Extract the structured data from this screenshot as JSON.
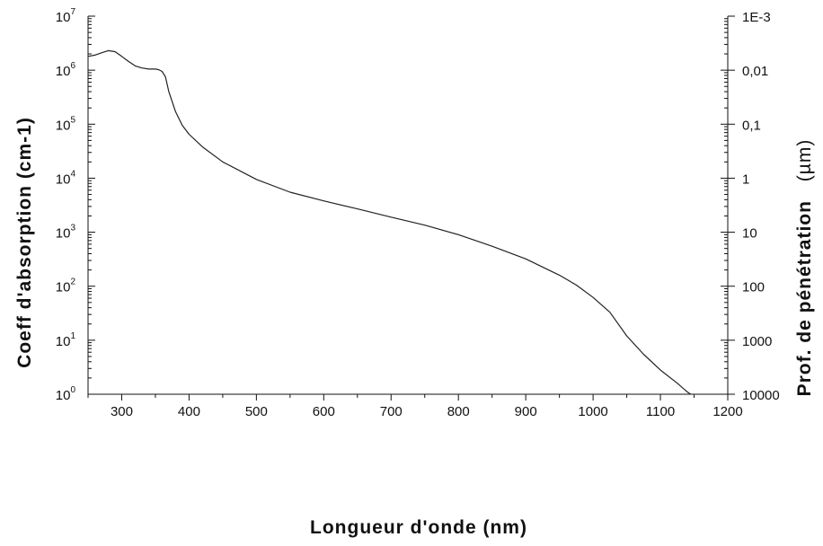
{
  "chart_data": {
    "type": "line",
    "title": "",
    "xlabel": "Longueur d'onde (nm)",
    "ylabel": "Coeff d'absorption (cm-1)",
    "y2label": "Prof. de pénétration  (µm)",
    "y2label_parts": {
      "main": "Prof. de pénétration",
      "unit": "(µm)"
    },
    "xlim": [
      250,
      1200
    ],
    "ylim": [
      1,
      10000000
    ],
    "yscale": "log",
    "y2scale": "log",
    "y2_inverse_of_y": true,
    "grid": false,
    "legend": "none",
    "x_ticks": [
      300,
      400,
      500,
      600,
      700,
      800,
      900,
      1000,
      1100,
      1200
    ],
    "x_tick_labels": [
      "300",
      "400",
      "500",
      "600",
      "700",
      "800",
      "900",
      "1000",
      "1100",
      "1200"
    ],
    "y_ticks": [
      {
        "value": 1,
        "base": "10",
        "exp": "0"
      },
      {
        "value": 10,
        "base": "10",
        "exp": "1"
      },
      {
        "value": 100,
        "base": "10",
        "exp": "2"
      },
      {
        "value": 1000,
        "base": "10",
        "exp": "3"
      },
      {
        "value": 10000,
        "base": "10",
        "exp": "4"
      },
      {
        "value": 100000,
        "base": "10",
        "exp": "5"
      },
      {
        "value": 1000000,
        "base": "10",
        "exp": "6"
      },
      {
        "value": 10000000,
        "base": "10",
        "exp": "7"
      }
    ],
    "y2_ticks": [
      {
        "value": 0.001,
        "label": "1E-3"
      },
      {
        "value": 0.01,
        "label": "0,01"
      },
      {
        "value": 0.1,
        "label": "0,1"
      },
      {
        "value": 1,
        "label": "1"
      },
      {
        "value": 10,
        "label": "10"
      },
      {
        "value": 100,
        "label": "100"
      },
      {
        "value": 1000,
        "label": "1000"
      },
      {
        "value": 10000,
        "label": "10000"
      }
    ],
    "series": [
      {
        "color": "#222222",
        "x": [
          250,
          260,
          270,
          280,
          290,
          300,
          310,
          320,
          330,
          340,
          350,
          355,
          360,
          365,
          370,
          380,
          390,
          400,
          420,
          450,
          500,
          550,
          600,
          650,
          700,
          750,
          800,
          850,
          900,
          950,
          975,
          1000,
          1025,
          1050,
          1075,
          1100,
          1125,
          1140,
          1145
        ],
        "y": [
          1800000,
          1900000,
          2100000,
          2300000,
          2200000,
          1800000,
          1450000,
          1200000,
          1100000,
          1050000,
          1050000,
          1020000,
          950000,
          750000,
          400000,
          170000,
          95000,
          65000,
          38000,
          20000,
          9500,
          5500,
          3800,
          2700,
          1900,
          1350,
          900,
          550,
          320,
          160,
          105,
          62,
          33,
          12,
          5.5,
          2.8,
          1.6,
          1.1,
          1.0
        ]
      }
    ]
  }
}
